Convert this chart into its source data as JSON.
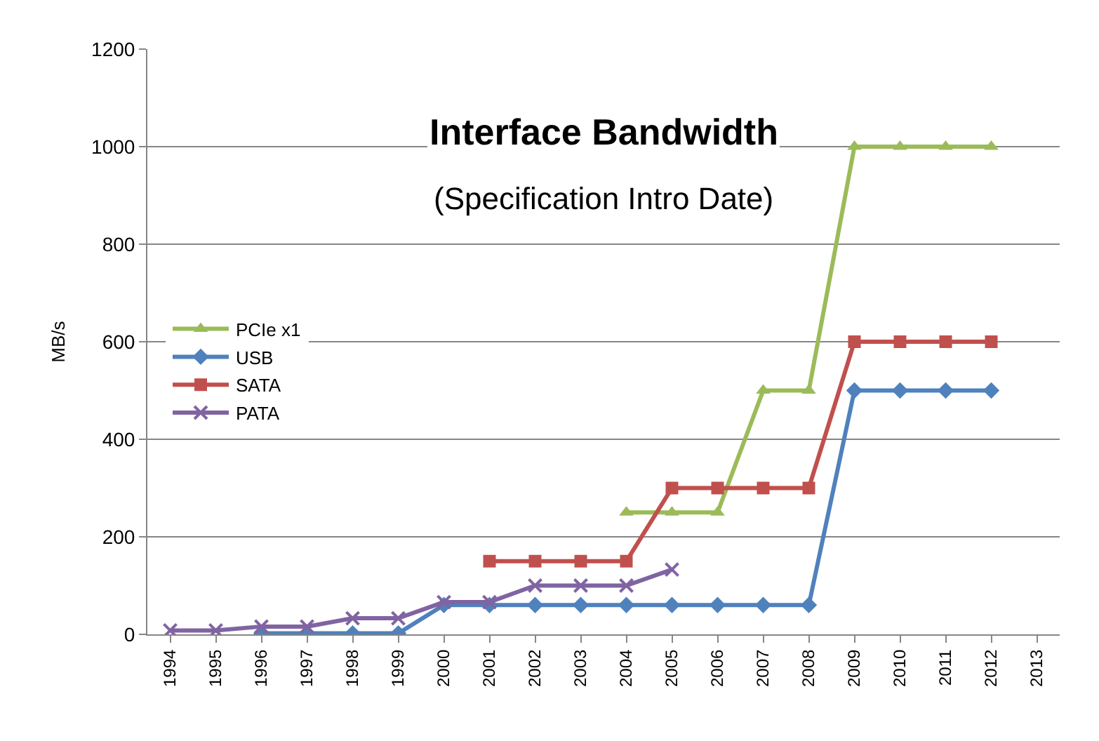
{
  "chart_data": {
    "type": "line",
    "title": "Interface Bandwidth",
    "subtitle": "(Specification Intro Date)",
    "ylabel": "MB/s",
    "categories": [
      "1994",
      "1995",
      "1996",
      "1997",
      "1998",
      "1999",
      "2000",
      "2001",
      "2002",
      "2003",
      "2004",
      "2005",
      "2006",
      "2007",
      "2008",
      "2009",
      "2010",
      "2011",
      "2012",
      "2013"
    ],
    "series": [
      {
        "name": "PCIe x1",
        "color": "#9bbb59",
        "marker": "triangle",
        "values": [
          null,
          null,
          null,
          null,
          null,
          null,
          null,
          null,
          null,
          null,
          250,
          250,
          250,
          500,
          500,
          1000,
          1000,
          1000,
          1000,
          null
        ]
      },
      {
        "name": "USB",
        "color": "#4f81bd",
        "marker": "diamond",
        "values": [
          null,
          null,
          2,
          2,
          2,
          2,
          60,
          60,
          60,
          60,
          60,
          60,
          60,
          60,
          60,
          500,
          500,
          500,
          500,
          null
        ]
      },
      {
        "name": "SATA",
        "color": "#c0504d",
        "marker": "square",
        "values": [
          null,
          null,
          null,
          null,
          null,
          null,
          null,
          150,
          150,
          150,
          150,
          300,
          300,
          300,
          300,
          600,
          600,
          600,
          600,
          null
        ]
      },
      {
        "name": "PATA",
        "color": "#8064a2",
        "marker": "cross",
        "values": [
          8,
          8,
          16,
          16,
          33,
          33,
          66,
          66,
          100,
          100,
          100,
          133,
          null,
          null,
          null,
          null,
          null,
          null,
          null,
          null
        ]
      }
    ],
    "ylim": [
      0,
      1200
    ],
    "yticks": [
      0,
      200,
      400,
      600,
      800,
      1000,
      1200
    ],
    "grid": "y",
    "legend": "left",
    "line_style": "solid"
  }
}
